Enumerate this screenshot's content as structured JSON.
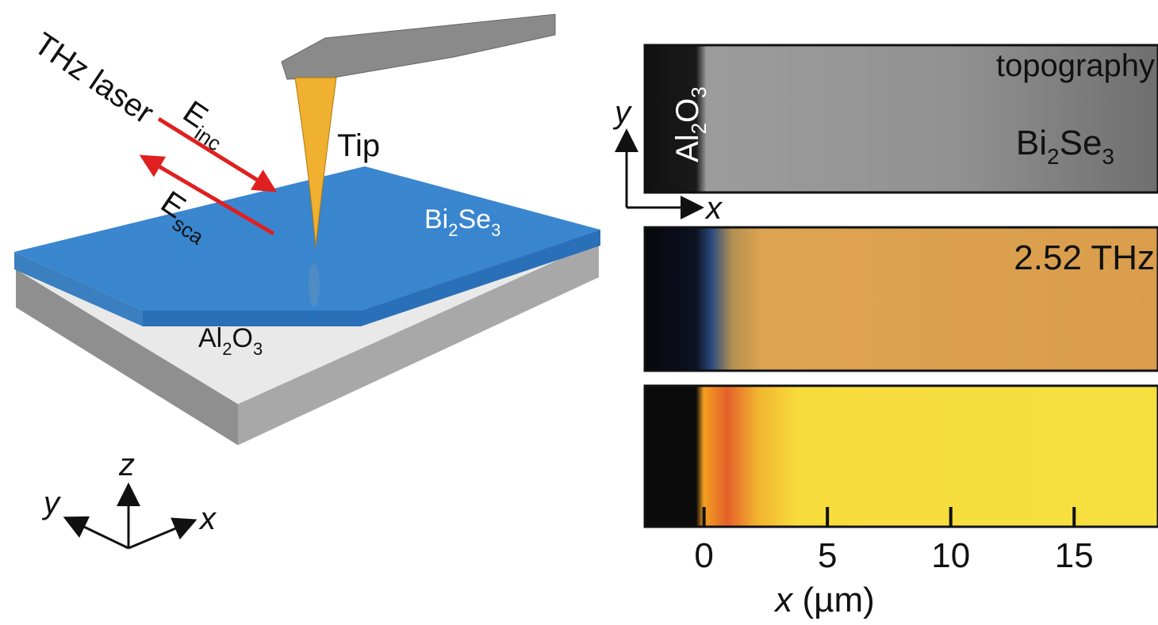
{
  "schematic": {
    "laser": "THz laser",
    "e_inc": {
      "main": "E",
      "sub": "inc"
    },
    "e_sca": {
      "main": "E",
      "sub": "sca"
    },
    "tip": "Tip",
    "film": [
      "Bi",
      "2",
      "Se",
      "3"
    ],
    "substrate": [
      "Al",
      "2",
      "O",
      "3"
    ],
    "axes": {
      "z": "z",
      "y": "y",
      "x": "x"
    }
  },
  "maps": {
    "topography": {
      "label": "topography",
      "film": [
        "Bi",
        "2",
        "Se",
        "3"
      ],
      "substrate": [
        "Al",
        "2",
        "O",
        "3"
      ],
      "y_arrow": "y",
      "x_arrow": "x"
    },
    "thz": {
      "label": "2.52 THz"
    },
    "axis": {
      "xlim": [
        -2.4,
        18.4
      ],
      "xticks": [
        0,
        5,
        10,
        15
      ],
      "xlabel": {
        "var": "x",
        "unit": "(µm)"
      }
    }
  }
}
